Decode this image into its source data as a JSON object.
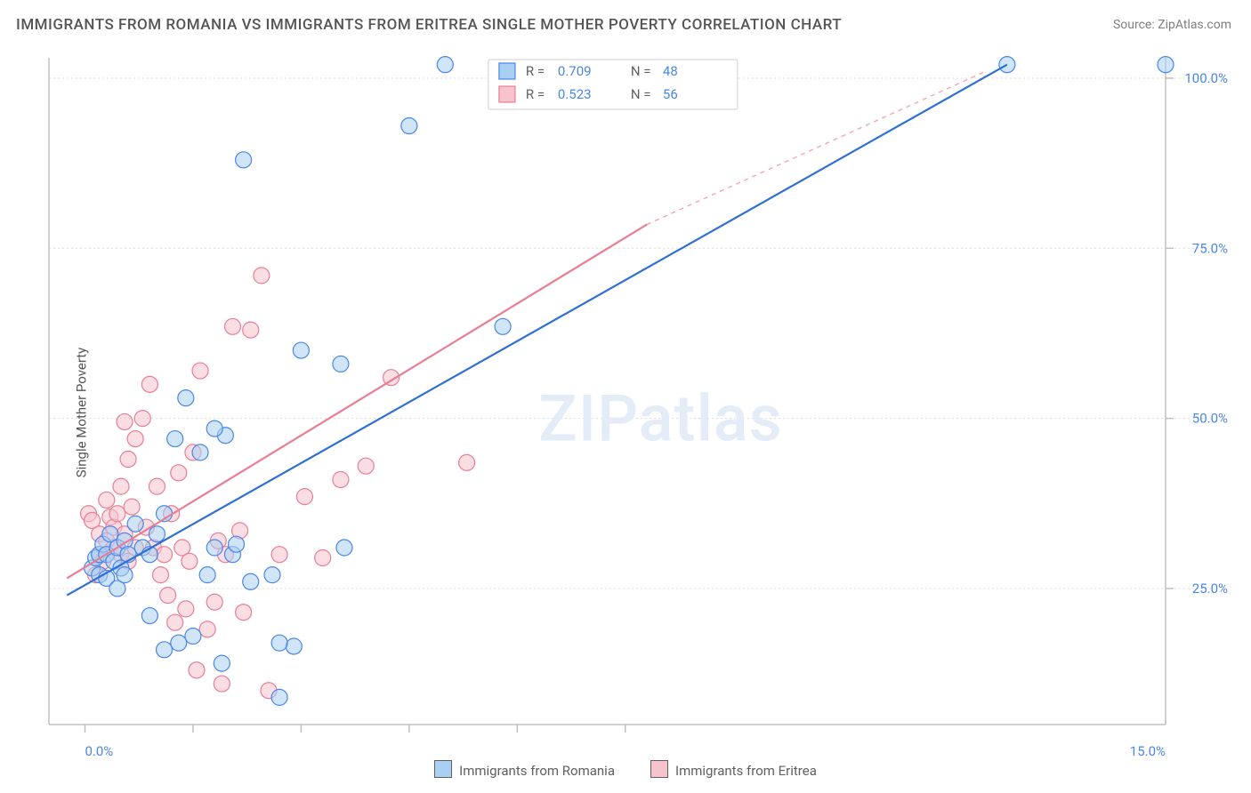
{
  "title": "IMMIGRANTS FROM ROMANIA VS IMMIGRANTS FROM ERITREA SINGLE MOTHER POVERTY CORRELATION CHART",
  "source": "Source: ZipAtlas.com",
  "watermark": "ZIPatlas",
  "y_axis_label": "Single Mother Poverty",
  "chart": {
    "type": "scatter",
    "background_color": "#ffffff",
    "grid_color": "#dcdcdc",
    "axis_color": "#c0c0c0",
    "tick_color_text": "#4a86e8",
    "marker_radius": 9,
    "xlim": [
      -0.5,
      15.0
    ],
    "ylim": [
      5,
      103
    ],
    "x_ticks_minor": [
      0.0,
      1.5,
      3.0,
      4.5,
      6.0,
      7.5
    ],
    "x_labels": [
      {
        "v": 0.0,
        "label": "0.0%"
      },
      {
        "v": 15.0,
        "label": "15.0%"
      }
    ],
    "y_gridlines": [
      25.0,
      50.0,
      75.0,
      100.0
    ],
    "y_labels": [
      {
        "v": 25.0,
        "label": "25.0%"
      },
      {
        "v": 50.0,
        "label": "50.0%"
      },
      {
        "v": 75.0,
        "label": "75.0%"
      },
      {
        "v": 100.0,
        "label": "100.0%"
      }
    ],
    "series": [
      {
        "name": "Immigrants from Romania",
        "color_fill": "#a9cff2",
        "color_stroke": "#4a86e8",
        "R": "0.709",
        "N": "48",
        "trend": {
          "x1": -0.25,
          "y1": 24.0,
          "x2": 12.8,
          "y2": 102.0,
          "color": "#2f6fd4",
          "dash_extends": false
        },
        "points": [
          [
            0.1,
            28
          ],
          [
            0.15,
            29.5
          ],
          [
            0.2,
            27
          ],
          [
            0.2,
            30
          ],
          [
            0.25,
            31.5
          ],
          [
            0.3,
            30
          ],
          [
            0.35,
            33
          ],
          [
            0.3,
            26.5
          ],
          [
            0.4,
            29
          ],
          [
            0.45,
            31
          ],
          [
            0.5,
            28
          ],
          [
            0.55,
            32
          ],
          [
            0.6,
            30
          ],
          [
            0.7,
            34.5
          ],
          [
            0.45,
            25
          ],
          [
            0.55,
            27
          ],
          [
            0.8,
            31
          ],
          [
            0.9,
            30
          ],
          [
            1.0,
            33
          ],
          [
            1.1,
            36
          ],
          [
            1.25,
            47
          ],
          [
            1.4,
            53
          ],
          [
            1.6,
            45
          ],
          [
            1.7,
            27
          ],
          [
            1.8,
            31
          ],
          [
            1.95,
            47.5
          ],
          [
            2.05,
            30
          ],
          [
            1.9,
            14
          ],
          [
            1.3,
            17
          ],
          [
            1.5,
            18
          ],
          [
            1.1,
            16
          ],
          [
            2.3,
            26
          ],
          [
            2.6,
            27
          ],
          [
            2.9,
            16.5
          ],
          [
            2.7,
            9
          ],
          [
            2.2,
            88
          ],
          [
            3.0,
            60
          ],
          [
            2.7,
            17
          ],
          [
            3.55,
            58
          ],
          [
            3.6,
            31
          ],
          [
            1.8,
            48.5
          ],
          [
            0.9,
            21
          ],
          [
            2.1,
            31.5
          ],
          [
            4.5,
            93
          ],
          [
            5.0,
            102
          ],
          [
            5.8,
            63.5
          ],
          [
            12.8,
            102
          ],
          [
            15.0,
            102
          ]
        ]
      },
      {
        "name": "Immigrants from Eritrea",
        "color_fill": "#f7c3cd",
        "color_stroke": "#e87e94",
        "R": "0.523",
        "N": "56",
        "trend": {
          "x1": -0.25,
          "y1": 26.5,
          "x2": 7.8,
          "y2": 78.5,
          "color": "#e87e94",
          "dash_extends": true,
          "dash_x2": 12.5,
          "dash_y2": 101.0
        },
        "points": [
          [
            0.05,
            36
          ],
          [
            0.1,
            35
          ],
          [
            0.15,
            27
          ],
          [
            0.2,
            30
          ],
          [
            0.2,
            33
          ],
          [
            0.25,
            29
          ],
          [
            0.3,
            32
          ],
          [
            0.35,
            35.5
          ],
          [
            0.3,
            38
          ],
          [
            0.4,
            31
          ],
          [
            0.4,
            34
          ],
          [
            0.45,
            36
          ],
          [
            0.5,
            30
          ],
          [
            0.5,
            40
          ],
          [
            0.55,
            33
          ],
          [
            0.55,
            49.5
          ],
          [
            0.6,
            29
          ],
          [
            0.6,
            44
          ],
          [
            0.65,
            37
          ],
          [
            0.7,
            31
          ],
          [
            0.7,
            47
          ],
          [
            0.8,
            50
          ],
          [
            0.85,
            34
          ],
          [
            0.9,
            55
          ],
          [
            0.95,
            31
          ],
          [
            1.0,
            40
          ],
          [
            1.05,
            27
          ],
          [
            1.1,
            30
          ],
          [
            1.15,
            24
          ],
          [
            1.2,
            36
          ],
          [
            1.25,
            20
          ],
          [
            1.3,
            42
          ],
          [
            1.35,
            31
          ],
          [
            1.4,
            22
          ],
          [
            1.45,
            29
          ],
          [
            1.5,
            45
          ],
          [
            1.6,
            57
          ],
          [
            1.7,
            19
          ],
          [
            1.8,
            23
          ],
          [
            1.85,
            32
          ],
          [
            1.9,
            11
          ],
          [
            1.95,
            30
          ],
          [
            2.05,
            63.5
          ],
          [
            2.15,
            33.5
          ],
          [
            2.2,
            21.5
          ],
          [
            2.3,
            63
          ],
          [
            2.45,
            71
          ],
          [
            2.55,
            10
          ],
          [
            2.7,
            30
          ],
          [
            3.05,
            38.5
          ],
          [
            3.3,
            29.5
          ],
          [
            3.55,
            41
          ],
          [
            3.9,
            43
          ],
          [
            4.25,
            56
          ],
          [
            5.3,
            43.5
          ],
          [
            1.55,
            13
          ]
        ]
      }
    ]
  },
  "legend_top": {
    "rows": [
      {
        "swatch": "blue",
        "R_label": "R =",
        "R": "0.709",
        "N_label": "N =",
        "N": "48"
      },
      {
        "swatch": "pink",
        "R_label": "R =",
        "R": "0.523",
        "N_label": "N =",
        "N": "56"
      }
    ]
  },
  "legend_bottom": [
    {
      "swatch": "blue",
      "label": "Immigrants from Romania"
    },
    {
      "swatch": "pink",
      "label": "Immigrants from Eritrea"
    }
  ]
}
